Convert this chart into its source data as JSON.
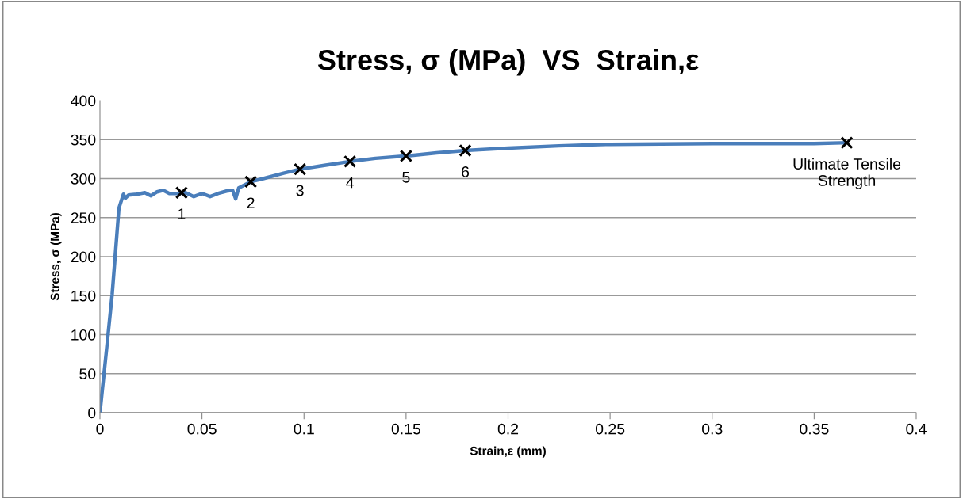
{
  "chart_data": {
    "type": "line",
    "title": "Stress, σ (MPa)  VS  Strain,ε",
    "xlabel": "Strain,ε (mm)",
    "ylabel": "Stress, σ (MPa)",
    "xlim": [
      0,
      0.4
    ],
    "xticks": [
      0,
      0.05,
      0.1,
      0.15,
      0.2,
      0.25,
      0.3,
      0.35,
      0.4
    ],
    "ylim": [
      0,
      400
    ],
    "yticks": [
      0,
      50,
      100,
      150,
      200,
      250,
      300,
      350,
      400
    ],
    "grid": "y",
    "legend": false,
    "series": [
      {
        "color": "#4a7ebb",
        "marker": "none",
        "line_style": "solid",
        "x": [
          0,
          0.003,
          0.006,
          0.0093,
          0.0115,
          0.0125,
          0.014,
          0.018,
          0.022,
          0.025,
          0.028,
          0.031,
          0.034,
          0.038,
          0.042,
          0.046,
          0.05,
          0.054,
          0.058,
          0.062,
          0.065,
          0.0665,
          0.068,
          0.0739,
          0.08,
          0.09,
          0.098,
          0.11,
          0.1225,
          0.135,
          0.15,
          0.165,
          0.179,
          0.2,
          0.225,
          0.25,
          0.3,
          0.35,
          0.366
        ],
        "values": [
          0,
          75,
          152,
          262,
          280,
          275,
          279,
          280,
          282,
          278,
          283,
          285,
          281,
          281,
          282,
          277,
          281,
          277,
          281,
          284,
          285,
          274,
          288,
          296,
          300,
          307,
          312,
          317,
          322,
          326,
          329,
          333,
          336,
          339,
          342,
          344,
          345,
          345,
          346
        ]
      },
      {
        "type": "scatter",
        "color": "#000000",
        "marker": "cross",
        "x": [
          0.04,
          0.0739,
          0.098,
          0.1225,
          0.15,
          0.179,
          0.366
        ],
        "values": [
          282,
          296,
          312,
          322,
          329,
          336,
          346
        ]
      }
    ],
    "annotations": [
      {
        "text": "1",
        "x": 0.04,
        "y": 282
      },
      {
        "text": "2",
        "x": 0.0739,
        "y": 296
      },
      {
        "text": "3",
        "x": 0.098,
        "y": 312
      },
      {
        "text": "4",
        "x": 0.1225,
        "y": 322
      },
      {
        "text": "5",
        "x": 0.15,
        "y": 329
      },
      {
        "text": "6",
        "x": 0.179,
        "y": 336
      },
      {
        "text": "Ultimate Tensile\nStrength",
        "x": 0.366,
        "y": 346
      }
    ]
  }
}
